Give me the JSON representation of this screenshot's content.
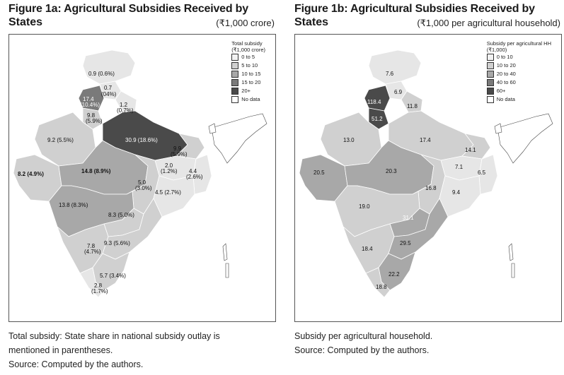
{
  "figures": [
    {
      "title_line1": "Figure 1a: Agricultural Subsidies Received by",
      "title_line2": "States",
      "unit": "(₹1,000 crore)",
      "legend_title_1": "Total subsidy",
      "legend_title_2": "(₹1,000 crore)",
      "legend": [
        {
          "label": "0 to 5",
          "color": "#f2f2f2"
        },
        {
          "label": "5 to 10",
          "color": "#d0d0d0"
        },
        {
          "label": "10 to 15",
          "color": "#a8a8a8"
        },
        {
          "label": "15 to 20",
          "color": "#7a7a7a"
        },
        {
          "label": "20+",
          "color": "#4a4a4a"
        },
        {
          "label": "No data",
          "color": "#ffffff"
        }
      ],
      "labels": {
        "jk": "0.9 (0.6%)",
        "hp": "0.7",
        "hp2": "(04%)",
        "pb": "17.4",
        "pb2": "(10.4%)",
        "hr": "9.8",
        "hr2": "(5.9%)",
        "uk": "1.2",
        "uk2": "(0.7%)",
        "rj": "9.2 (5.5%)",
        "up": "30.9 (18.6%)",
        "br": "9.9",
        "br2": "(5.9%)",
        "gj": "8.2 (4.9%)",
        "mp": "14.8 (8.9%)",
        "jh": "2.0",
        "jh2": "(1.2%)",
        "wb": "4.4",
        "wb2": "(2.6%)",
        "cg": "5.0",
        "cg2": "(3.0%)",
        "od": "4.5 (2.7%)",
        "mh": "13.8 (8.3%)",
        "ts": "8.3 (5.0%)",
        "ka": "7.8",
        "ka2": "(4.7%)",
        "ap": "9.3 (5.6%)",
        "tn": "5.7 (3.4%)",
        "kl": "2.8",
        "kl2": "(1.7%)"
      },
      "caption": [
        "Total subsidy: State share in national subsidy outlay is",
        "mentioned in parentheses.",
        "Source: Computed by the authors."
      ]
    },
    {
      "title_line1": "Figure 1b: Agricultural Subsidies Received by",
      "title_line2": "States",
      "unit": "(₹1,000 per agricultural household)",
      "legend_title_1": "Subsidy per agricultural HH",
      "legend_title_2": "(₹1,000)",
      "legend": [
        {
          "label": "0 to 10",
          "color": "#f2f2f2"
        },
        {
          "label": "10 to 20",
          "color": "#d0d0d0"
        },
        {
          "label": "20 to 40",
          "color": "#a8a8a8"
        },
        {
          "label": "40 to 60",
          "color": "#7a7a7a"
        },
        {
          "label": "60+",
          "color": "#4a4a4a"
        },
        {
          "label": "No data",
          "color": "#ffffff"
        }
      ],
      "labels": {
        "jk": "7.6",
        "hp": "6.9",
        "pb": "118.4",
        "hr": "51.2",
        "uk": "11.8",
        "rj": "13.0",
        "up": "17.4",
        "br": "14.1",
        "gj": "20.5",
        "mp": "20.3",
        "jh": "7.1",
        "wb": "6.5",
        "cg": "16.8",
        "od": "9.4",
        "mh": "19.0",
        "ts": "31.1",
        "ka": "18.4",
        "ap": "29.5",
        "tn": "22.2",
        "kl": "18.8"
      },
      "caption": [
        "Subsidy per agricultural household.",
        "Source: Computed by the authors."
      ]
    }
  ]
}
